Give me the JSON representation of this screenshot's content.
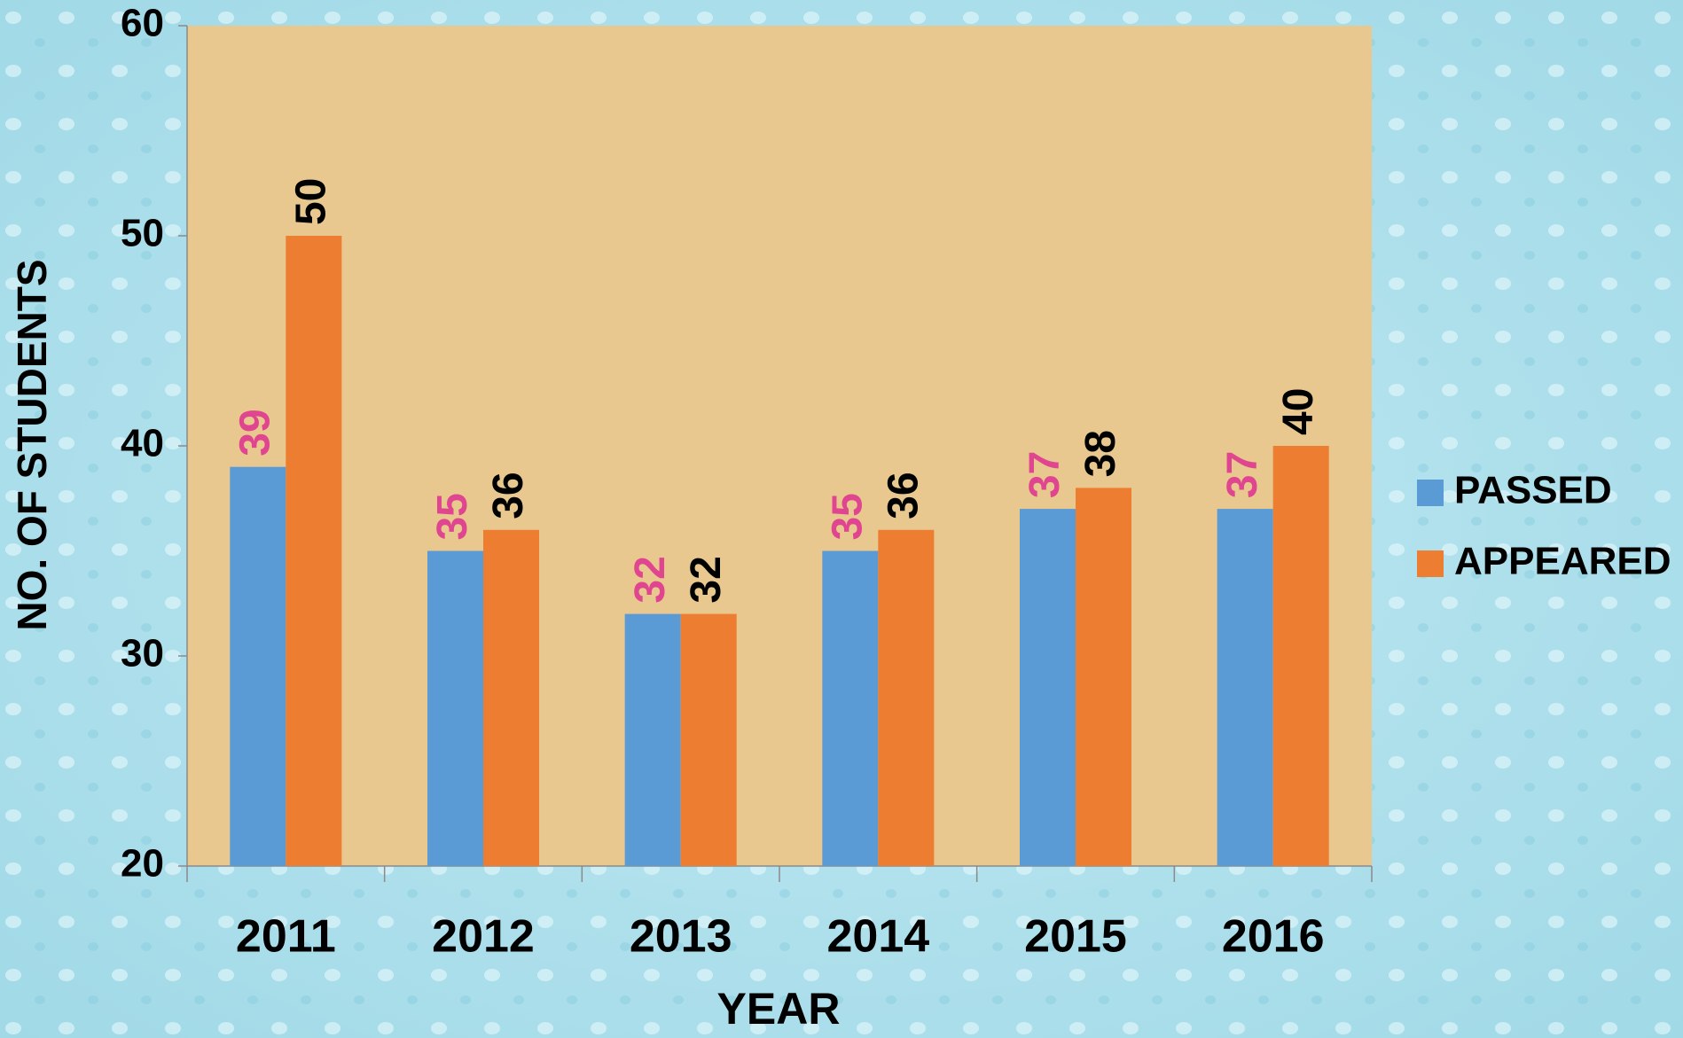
{
  "chart_data": {
    "type": "bar",
    "x_label": "YEAR",
    "y_label": "NO. OF STUDENTS",
    "categories": [
      "2011",
      "2012",
      "2013",
      "2014",
      "2015",
      "2016"
    ],
    "series": [
      {
        "name": "PASSED",
        "color": "#5b9bd5",
        "label_color": "#e0468f",
        "values": [
          39,
          35,
          32,
          35,
          37,
          37
        ]
      },
      {
        "name": "APPEARED",
        "color": "#ed7d31",
        "label_color": "#000000",
        "values": [
          50,
          36,
          32,
          36,
          38,
          40
        ]
      }
    ],
    "ylim": [
      20,
      60
    ],
    "yticks": [
      20,
      30,
      40,
      50,
      60
    ],
    "legend": "right"
  }
}
